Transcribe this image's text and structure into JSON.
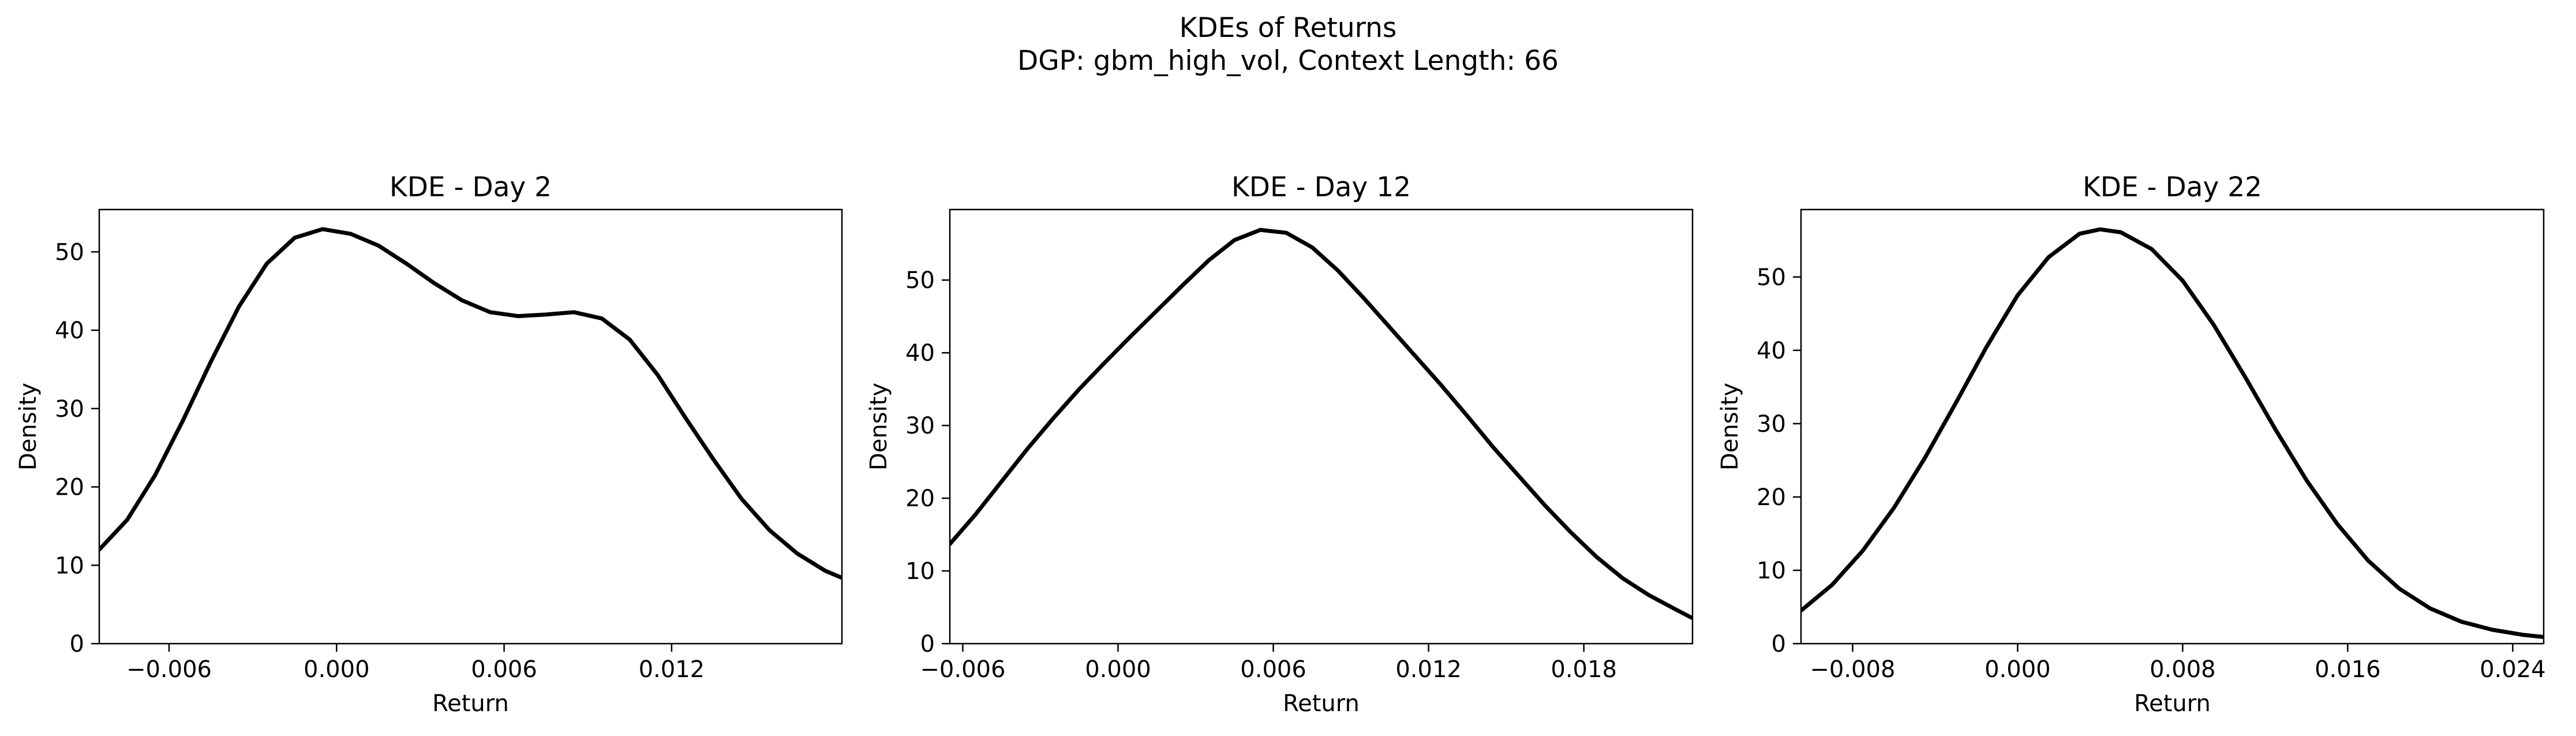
{
  "figure": {
    "suptitle_line1": "KDEs of Returns",
    "suptitle_line2": "DGP: gbm_high_vol, Context Length: 66",
    "line_color": "#000000",
    "background": "#ffffff"
  },
  "chart_data": [
    {
      "type": "line",
      "title": "KDE - Day 2",
      "xlabel": "Return",
      "ylabel": "Density",
      "xlim": [
        -0.0085,
        0.0181
      ],
      "ylim": [
        0,
        55.4
      ],
      "xticks": [
        -0.006,
        0.0,
        0.006,
        0.012
      ],
      "xtick_labels": [
        "−0.006",
        "0.000",
        "0.006",
        "0.012"
      ],
      "yticks": [
        0,
        10,
        20,
        30,
        40,
        50
      ],
      "ytick_labels": [
        "0",
        "10",
        "20",
        "30",
        "40",
        "50"
      ],
      "grid": false,
      "series": [
        {
          "x": [
            -0.0085,
            -0.0075,
            -0.0065,
            -0.0055,
            -0.0045,
            -0.0035,
            -0.0025,
            -0.0015,
            -0.0005,
            0.0005,
            0.0015,
            0.0025,
            0.0035,
            0.0045,
            0.0055,
            0.0065,
            0.0075,
            0.0085,
            0.0095,
            0.0105,
            0.0115,
            0.0125,
            0.0135,
            0.0145,
            0.0155,
            0.0165,
            0.0175,
            0.0181
          ],
          "y": [
            12.0,
            15.8,
            21.5,
            28.5,
            36.0,
            43.0,
            48.5,
            51.8,
            52.9,
            52.3,
            50.8,
            48.5,
            46.0,
            43.8,
            42.3,
            41.8,
            42.0,
            42.3,
            41.5,
            38.8,
            34.3,
            28.8,
            23.5,
            18.5,
            14.5,
            11.5,
            9.3,
            8.4
          ]
        }
      ]
    },
    {
      "type": "line",
      "title": "KDE - Day 12",
      "xlabel": "Return",
      "ylabel": "Density",
      "xlim": [
        -0.0065,
        0.0222
      ],
      "ylim": [
        0,
        59.7
      ],
      "xticks": [
        -0.006,
        0.0,
        0.006,
        0.012,
        0.018
      ],
      "xtick_labels": [
        "−0.006",
        "0.000",
        "0.006",
        "0.012",
        "0.018"
      ],
      "yticks": [
        0,
        10,
        20,
        30,
        40,
        50
      ],
      "ytick_labels": [
        "0",
        "10",
        "20",
        "30",
        "40",
        "50"
      ],
      "grid": false,
      "series": [
        {
          "x": [
            -0.0065,
            -0.0055,
            -0.0045,
            -0.0035,
            -0.0025,
            -0.0015,
            -0.0005,
            0.0005,
            0.0015,
            0.0025,
            0.0035,
            0.0045,
            0.0055,
            0.0065,
            0.0075,
            0.0085,
            0.0095,
            0.0105,
            0.0115,
            0.0125,
            0.0135,
            0.0145,
            0.0155,
            0.0165,
            0.0175,
            0.0185,
            0.0195,
            0.0205,
            0.0215,
            0.0222
          ],
          "y": [
            13.7,
            17.8,
            22.3,
            26.8,
            31.0,
            35.0,
            38.7,
            42.3,
            45.8,
            49.3,
            52.7,
            55.5,
            56.9,
            56.5,
            54.5,
            51.3,
            47.5,
            43.5,
            39.5,
            35.5,
            31.3,
            27.0,
            23.0,
            19.0,
            15.3,
            11.9,
            9.0,
            6.7,
            4.8,
            3.5
          ]
        }
      ]
    },
    {
      "type": "line",
      "title": "KDE - Day 22",
      "xlabel": "Return",
      "ylabel": "Density",
      "xlim": [
        -0.0105,
        0.0255
      ],
      "ylim": [
        0,
        59.2
      ],
      "xticks": [
        -0.008,
        0.0,
        0.008,
        0.016,
        0.024
      ],
      "xtick_labels": [
        "−0.008",
        "0.000",
        "0.008",
        "0.016",
        "0.024"
      ],
      "yticks": [
        0,
        10,
        20,
        30,
        40,
        50
      ],
      "ytick_labels": [
        "0",
        "10",
        "20",
        "30",
        "40",
        "50"
      ],
      "grid": false,
      "series": [
        {
          "x": [
            -0.0105,
            -0.009,
            -0.0075,
            -0.006,
            -0.0045,
            -0.003,
            -0.0015,
            0.0,
            0.0015,
            0.003,
            0.004,
            0.005,
            0.0065,
            0.008,
            0.0095,
            0.011,
            0.0125,
            0.014,
            0.0155,
            0.017,
            0.0185,
            0.02,
            0.0215,
            0.023,
            0.0245,
            0.0255
          ],
          "y": [
            4.5,
            8.0,
            12.7,
            18.5,
            25.3,
            32.8,
            40.5,
            47.5,
            52.7,
            55.9,
            56.5,
            56.1,
            53.8,
            49.5,
            43.5,
            36.5,
            29.2,
            22.3,
            16.3,
            11.3,
            7.5,
            4.8,
            3.0,
            1.9,
            1.2,
            0.9
          ]
        }
      ]
    }
  ]
}
